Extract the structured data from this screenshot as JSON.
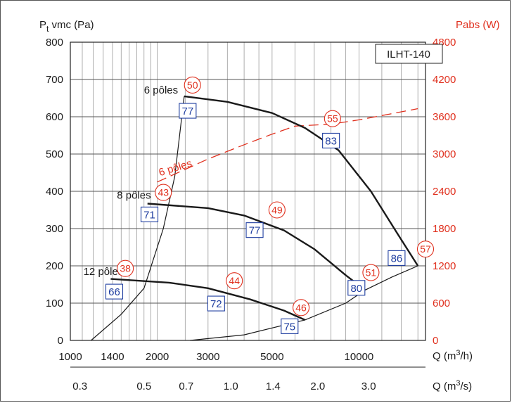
{
  "chart_data": {
    "type": "line",
    "model": "ILHT-140",
    "y_left": {
      "label_main": "P",
      "label_sub": "t",
      "label_rest": " vmc (Pa)",
      "ticks": [
        0,
        100,
        200,
        300,
        400,
        500,
        600,
        700,
        800
      ],
      "range": [
        0,
        800
      ]
    },
    "y_right": {
      "label": "Pabs (W)",
      "ticks": [
        0,
        600,
        1200,
        1800,
        2400,
        3000,
        3600,
        4200,
        4800
      ],
      "range": [
        0,
        4800
      ]
    },
    "x_top": {
      "label_pre": "Q (m",
      "label_sup": "3",
      "label_post": "/h)",
      "scale": "log",
      "range": [
        1000,
        17000
      ],
      "ticks": [
        {
          "v": 1000,
          "t": "1000"
        },
        {
          "v": 1400,
          "t": "1400"
        },
        {
          "v": 2000,
          "t": "2000"
        },
        {
          "v": 3000,
          "t": "3000"
        },
        {
          "v": 5000,
          "t": "5000"
        },
        {
          "v": 10000,
          "t": "10000"
        }
      ]
    },
    "x_bottom": {
      "label_pre": "Q (m",
      "label_sup": "3",
      "label_post": "/s)",
      "ticks": [
        {
          "v": 0.3,
          "t": "0.3"
        },
        {
          "v": 0.5,
          "t": "0.5"
        },
        {
          "v": 0.7,
          "t": "0.7"
        },
        {
          "v": 1.0,
          "t": "1.0"
        },
        {
          "v": 1.4,
          "t": "1.4"
        },
        {
          "v": 2.0,
          "t": "2.0"
        },
        {
          "v": 3.0,
          "t": "3.0"
        }
      ]
    },
    "series": [
      {
        "name": "6 pôles",
        "points": [
          [
            2480,
            655
          ],
          [
            3500,
            640
          ],
          [
            5000,
            610
          ],
          [
            6500,
            570
          ],
          [
            8500,
            510
          ],
          [
            11000,
            400
          ],
          [
            13500,
            290
          ],
          [
            16000,
            200
          ]
        ]
      },
      {
        "name": "8 pôles",
        "points": [
          [
            1850,
            367
          ],
          [
            3000,
            355
          ],
          [
            4000,
            335
          ],
          [
            5500,
            295
          ],
          [
            7000,
            245
          ],
          [
            9000,
            175
          ],
          [
            10500,
            135
          ]
        ]
      },
      {
        "name": "12 pôles",
        "points": [
          [
            1380,
            165
          ],
          [
            2200,
            155
          ],
          [
            3000,
            140
          ],
          [
            4200,
            110
          ],
          [
            5500,
            80
          ],
          [
            6500,
            55
          ]
        ]
      }
    ],
    "system_curves": [
      {
        "points": [
          [
            1180,
            0
          ],
          [
            1500,
            70
          ],
          [
            1800,
            140
          ],
          [
            2100,
            300
          ],
          [
            2300,
            440
          ],
          [
            2480,
            655
          ]
        ]
      },
      {
        "points": [
          [
            2600,
            0
          ],
          [
            4000,
            15
          ],
          [
            6500,
            55
          ],
          [
            9000,
            100
          ],
          [
            10500,
            135
          ],
          [
            13000,
            170
          ],
          [
            16000,
            200
          ]
        ]
      }
    ],
    "power_curve": {
      "label": "6 pôles",
      "points_w": [
        [
          2000,
          2550
        ],
        [
          3000,
          2920
        ],
        [
          4000,
          3150
        ],
        [
          5000,
          3320
        ],
        [
          6000,
          3450
        ],
        [
          8000,
          3480
        ],
        [
          10000,
          3550
        ],
        [
          13000,
          3650
        ],
        [
          16000,
          3730
        ]
      ]
    },
    "efficiency_labels": [
      {
        "t": "77",
        "x": 2550,
        "y": 615
      },
      {
        "t": "83",
        "x": 8000,
        "y": 535
      },
      {
        "t": "71",
        "x": 1880,
        "y": 337
      },
      {
        "t": "77",
        "x": 4350,
        "y": 295
      },
      {
        "t": "86",
        "x": 13500,
        "y": 220
      },
      {
        "t": "66",
        "x": 1420,
        "y": 130
      },
      {
        "t": "72",
        "x": 3200,
        "y": 98
      },
      {
        "t": "80",
        "x": 9800,
        "y": 140
      },
      {
        "t": "75",
        "x": 5750,
        "y": 37
      }
    ],
    "power_labels": [
      {
        "t": "50",
        "x": 2650,
        "y": 685
      },
      {
        "t": "55",
        "x": 8100,
        "y": 595
      },
      {
        "t": "43",
        "x": 2100,
        "y": 397
      },
      {
        "t": "49",
        "x": 5200,
        "y": 350
      },
      {
        "t": "57",
        "x": 17000,
        "y": 245
      },
      {
        "t": "38",
        "x": 1550,
        "y": 193
      },
      {
        "t": "44",
        "x": 3700,
        "y": 160
      },
      {
        "t": "51",
        "x": 11000,
        "y": 182
      },
      {
        "t": "46",
        "x": 6300,
        "y": 88
      }
    ],
    "curve_labels": [
      {
        "t": "6 pôles",
        "x": 1800,
        "y": 672
      },
      {
        "t": "8 pôles",
        "x": 1450,
        "y": 390
      },
      {
        "t": "12 pôles",
        "x": 1110,
        "y": 185
      }
    ]
  }
}
